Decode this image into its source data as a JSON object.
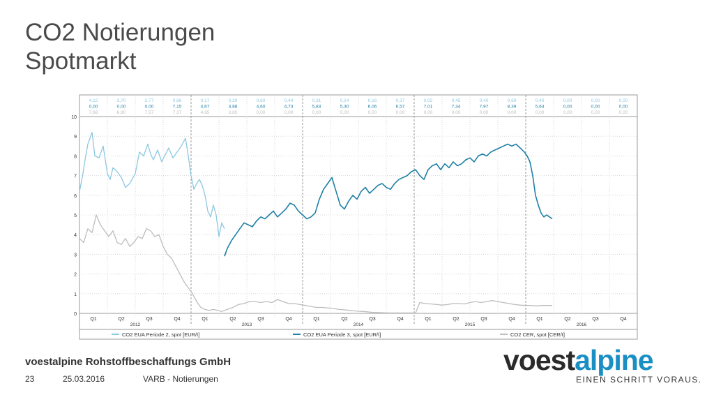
{
  "slide": {
    "title_line1": "CO2 Notierungen",
    "title_line2": "Spotmarkt",
    "company": "voestalpine Rohstoffbeschaffungs GmbH",
    "page_number": "23",
    "date": "25.03.2016",
    "document": "VARB - Notierungen",
    "logo_part1": "voest",
    "logo_part2": "alpine",
    "slogan": "EINEN SCHRITT VORAUS."
  },
  "colors": {
    "period2": "#8cc8e0",
    "period3": "#1e7fa6",
    "cer": "#bdbdbd",
    "grid": "#d8d8d8",
    "logo_accent": "#1a8fc4"
  },
  "chart_data": {
    "type": "line",
    "ylim": [
      0,
      10
    ],
    "yticks": [
      "0",
      "1",
      "2",
      "3",
      "4",
      "5",
      "6",
      "7",
      "8",
      "9",
      "10"
    ],
    "quarters": [
      "Q1",
      "Q2",
      "Q3",
      "Q4",
      "Q1",
      "Q2",
      "Q3",
      "Q4",
      "Q1",
      "Q2",
      "Q3",
      "Q4",
      "Q1",
      "Q2",
      "Q3",
      "Q4",
      "Q1",
      "Q2",
      "Q3",
      "Q4"
    ],
    "years": [
      "2012",
      "2013",
      "2014",
      "2015",
      "2016"
    ],
    "legend": [
      "CO2 EUA Periode 2, spot [EUR/t]",
      "CO2 EUA Periode 3, spot [EUR/t]",
      "CO2 CER, spot [CER/t]"
    ],
    "table": [
      [
        "4,12",
        "0,00",
        "7,66"
      ],
      [
        "3,70",
        "0,00",
        "6,90"
      ],
      [
        "2,77",
        "0,00",
        "7,57"
      ],
      [
        "0,86",
        "7,15",
        "7,37"
      ],
      [
        "0,17",
        "4,67",
        "4,65"
      ],
      [
        "0,29",
        "3,88",
        "3,85"
      ],
      [
        "0,60",
        "4,60",
        "0,00"
      ],
      [
        "0,44",
        "4,73",
        "0,00"
      ],
      [
        "0,31",
        "5,83",
        "0,00"
      ],
      [
        "0,14",
        "5,30",
        "0,00"
      ],
      [
        "0,16",
        "6,06",
        "0,00"
      ],
      [
        "0,37",
        "6,57",
        "0,00"
      ],
      [
        "0,02",
        "7,01",
        "0,00"
      ],
      [
        "0,45",
        "7,34",
        "0,00"
      ],
      [
        "0,40",
        "7,97",
        "0,00"
      ],
      [
        "0,69",
        "8,39",
        "0,00"
      ],
      [
        "0,40",
        "5,64",
        "0,00"
      ],
      [
        "0,00",
        "0,00",
        "0,00"
      ],
      [
        "0,00",
        "0,00",
        "0,00"
      ],
      [
        "0,00",
        "0,00",
        "0,00"
      ]
    ],
    "series": [
      {
        "name": "CO2 EUA Periode 2, spot [EUR/t]",
        "x": [
          0,
          0.1,
          0.2,
          0.3,
          0.45,
          0.55,
          0.7,
          0.85,
          1.0,
          1.1,
          1.2,
          1.35,
          1.5,
          1.65,
          1.8,
          2.0,
          2.15,
          2.3,
          2.45,
          2.55,
          2.65,
          2.8,
          2.95,
          3.05,
          3.2,
          3.35,
          3.5,
          3.65,
          3.8,
          3.9,
          4.0,
          4.1,
          4.2,
          4.3,
          4.4,
          4.5,
          4.6,
          4.7,
          4.8,
          4.9,
          5.0,
          5.1,
          5.2
        ],
        "values": [
          6.2,
          6.9,
          7.8,
          8.6,
          9.2,
          8.0,
          7.9,
          8.5,
          7.1,
          6.8,
          7.4,
          7.2,
          6.9,
          6.4,
          6.6,
          7.1,
          8.2,
          8.0,
          8.6,
          8.1,
          7.8,
          8.3,
          7.7,
          8.0,
          8.4,
          7.9,
          8.2,
          8.5,
          8.9,
          8.0,
          7.0,
          6.3,
          6.6,
          6.8,
          6.5,
          6.0,
          5.2,
          4.9,
          5.5,
          5.0,
          3.9,
          4.6,
          4.3
        ]
      },
      {
        "name": "CO2 EUA Periode 3, spot [EUR/t]",
        "x": [
          5.2,
          5.3,
          5.45,
          5.6,
          5.75,
          5.9,
          6.05,
          6.2,
          6.35,
          6.5,
          6.65,
          6.8,
          6.95,
          7.1,
          7.25,
          7.4,
          7.55,
          7.7,
          7.85,
          8.0,
          8.15,
          8.3,
          8.45,
          8.6,
          8.75,
          8.9,
          9.05,
          9.2,
          9.35,
          9.5,
          9.65,
          9.8,
          9.95,
          10.1,
          10.25,
          10.4,
          10.55,
          10.7,
          10.85,
          11.0,
          11.15,
          11.3,
          11.45,
          11.6,
          11.75,
          11.9,
          12.05,
          12.2,
          12.35,
          12.5,
          12.65,
          12.8,
          12.95,
          13.1,
          13.25,
          13.4,
          13.55,
          13.7,
          13.85,
          14.0,
          14.15,
          14.3,
          14.45,
          14.6,
          14.75,
          14.9,
          15.05,
          15.2,
          15.35,
          15.5,
          15.65,
          15.8,
          15.95,
          16.05,
          16.15,
          16.25,
          16.35,
          16.45,
          16.55,
          16.65,
          16.75,
          16.85,
          16.95
        ],
        "values": [
          2.9,
          3.3,
          3.7,
          4.0,
          4.3,
          4.6,
          4.5,
          4.4,
          4.7,
          4.9,
          4.8,
          5.0,
          5.2,
          4.9,
          5.1,
          5.3,
          5.6,
          5.5,
          5.2,
          5.0,
          4.8,
          4.9,
          5.1,
          5.8,
          6.3,
          6.6,
          6.9,
          6.2,
          5.5,
          5.3,
          5.7,
          6.0,
          5.8,
          6.2,
          6.4,
          6.1,
          6.3,
          6.5,
          6.6,
          6.4,
          6.3,
          6.6,
          6.8,
          6.9,
          7.0,
          7.2,
          7.3,
          7.0,
          6.8,
          7.3,
          7.5,
          7.6,
          7.3,
          7.6,
          7.4,
          7.7,
          7.5,
          7.6,
          7.8,
          7.9,
          7.7,
          8.0,
          8.1,
          8.0,
          8.2,
          8.3,
          8.4,
          8.5,
          8.6,
          8.5,
          8.6,
          8.4,
          8.2,
          8.0,
          7.7,
          7.0,
          6.0,
          5.5,
          5.1,
          4.9,
          5.0,
          4.9,
          4.8
        ]
      },
      {
        "name": "CO2 CER, spot [CER/t]",
        "x": [
          0,
          0.15,
          0.3,
          0.45,
          0.6,
          0.75,
          0.9,
          1.05,
          1.2,
          1.35,
          1.5,
          1.65,
          1.8,
          1.95,
          2.1,
          2.25,
          2.4,
          2.55,
          2.7,
          2.85,
          3.0,
          3.15,
          3.3,
          3.45,
          3.6,
          3.75,
          3.9,
          4.05,
          4.2,
          4.35,
          4.5,
          4.65,
          4.8,
          4.95,
          5.1,
          5.3,
          5.5,
          5.7,
          5.9,
          6.1,
          6.3,
          6.5,
          6.7,
          6.9,
          7.1,
          7.3,
          7.5,
          7.7,
          7.9,
          8.1,
          8.3,
          8.5,
          8.7,
          8.9,
          9.1,
          9.3,
          9.5,
          9.7,
          9.9,
          10.1,
          10.3,
          10.5,
          10.7,
          10.9,
          11.1,
          11.3,
          11.5,
          11.7,
          11.9,
          12.05,
          12.2,
          12.4,
          12.6,
          12.8,
          13.0,
          13.2,
          13.4,
          13.6,
          13.8,
          14.0,
          14.2,
          14.4,
          14.6,
          14.8,
          15.0,
          15.2,
          15.4,
          15.6,
          15.8,
          16.0,
          16.2,
          16.4,
          16.6,
          16.8,
          16.95
        ],
        "values": [
          3.8,
          3.6,
          4.3,
          4.1,
          5.0,
          4.5,
          4.2,
          3.9,
          4.2,
          3.6,
          3.5,
          3.8,
          3.4,
          3.6,
          3.9,
          3.8,
          4.3,
          4.2,
          3.9,
          4.0,
          3.4,
          3.0,
          2.8,
          2.4,
          2.0,
          1.6,
          1.3,
          1.0,
          0.6,
          0.3,
          0.2,
          0.15,
          0.2,
          0.15,
          0.1,
          0.2,
          0.3,
          0.45,
          0.5,
          0.6,
          0.6,
          0.55,
          0.6,
          0.55,
          0.7,
          0.6,
          0.5,
          0.5,
          0.45,
          0.4,
          0.35,
          0.3,
          0.3,
          0.28,
          0.25,
          0.2,
          0.18,
          0.15,
          0.12,
          0.1,
          0.08,
          0.05,
          0.04,
          0.03,
          0.02,
          0.02,
          0.02,
          0.02,
          0.02,
          0.02,
          0.55,
          0.5,
          0.48,
          0.45,
          0.42,
          0.45,
          0.5,
          0.5,
          0.48,
          0.55,
          0.6,
          0.55,
          0.6,
          0.65,
          0.6,
          0.55,
          0.5,
          0.45,
          0.42,
          0.4,
          0.4,
          0.38,
          0.4,
          0.4,
          0.4
        ]
      }
    ]
  }
}
